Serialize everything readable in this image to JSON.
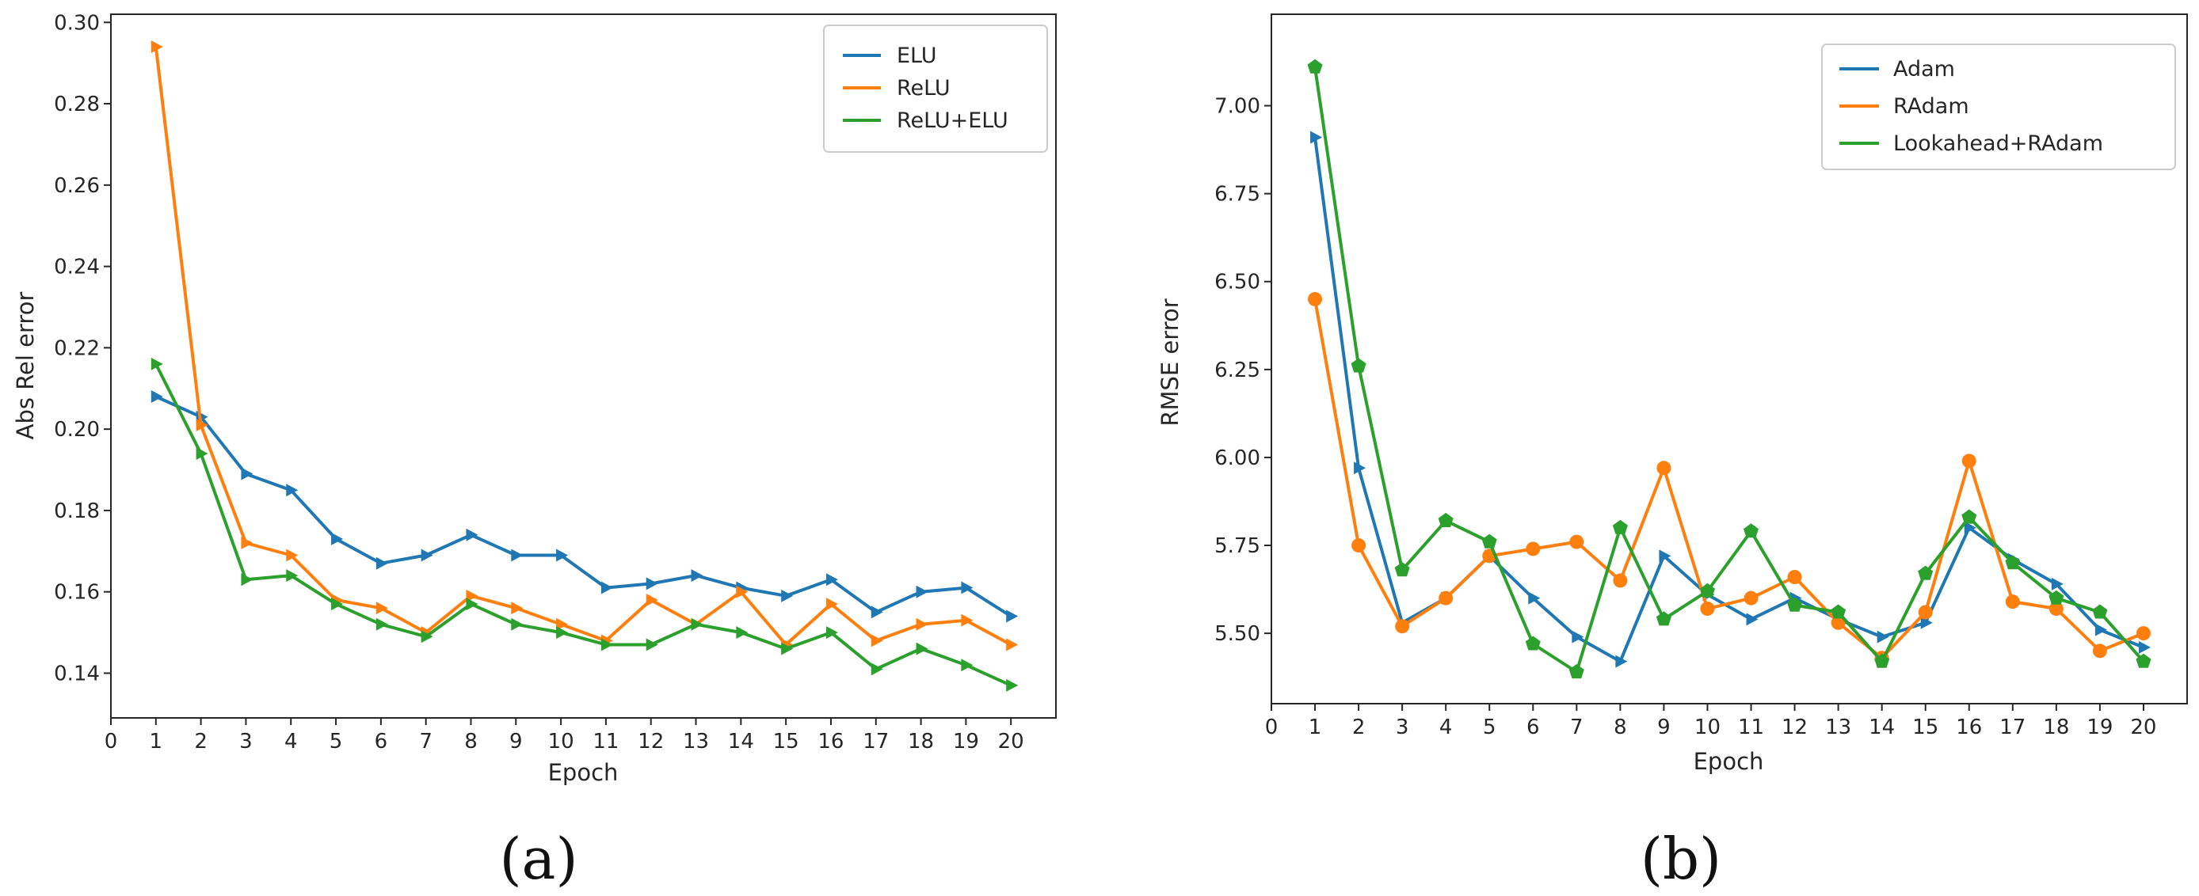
{
  "chart_data": [
    {
      "type": "line",
      "panel": "a",
      "caption": "(a)",
      "title": "",
      "xlabel": "Epoch",
      "ylabel": "Abs Rel error",
      "xlim": [
        0,
        21
      ],
      "ylim": [
        0.129,
        0.302
      ],
      "xticks": [
        "0",
        "1",
        "2",
        "3",
        "4",
        "5",
        "6",
        "7",
        "8",
        "9",
        "10",
        "11",
        "12",
        "13",
        "14",
        "15",
        "16",
        "17",
        "18",
        "19",
        "20"
      ],
      "yticks": [
        "0.14",
        "0.16",
        "0.18",
        "0.20",
        "0.22",
        "0.24",
        "0.26",
        "0.28",
        "0.30"
      ],
      "legend_position": "top-right",
      "marker": "triangle-right",
      "x": [
        1,
        2,
        3,
        4,
        5,
        6,
        7,
        8,
        9,
        10,
        11,
        12,
        13,
        14,
        15,
        16,
        17,
        18,
        19,
        20
      ],
      "series": [
        {
          "name": "ELU",
          "color": "#1f77b4",
          "values": [
            0.208,
            0.203,
            0.189,
            0.185,
            0.173,
            0.167,
            0.169,
            0.174,
            0.169,
            0.169,
            0.161,
            0.162,
            0.164,
            0.161,
            0.159,
            0.163,
            0.155,
            0.16,
            0.161,
            0.154
          ]
        },
        {
          "name": "ReLU",
          "color": "#ff7f0e",
          "values": [
            0.294,
            0.201,
            0.172,
            0.169,
            0.158,
            0.156,
            0.15,
            0.159,
            0.156,
            0.152,
            0.148,
            0.158,
            0.152,
            0.16,
            0.147,
            0.157,
            0.148,
            0.152,
            0.153,
            0.147
          ]
        },
        {
          "name": "ReLU+ELU",
          "color": "#2ca02c",
          "values": [
            0.216,
            0.194,
            0.163,
            0.164,
            0.157,
            0.152,
            0.149,
            0.157,
            0.152,
            0.15,
            0.147,
            0.147,
            0.152,
            0.15,
            0.146,
            0.15,
            0.141,
            0.146,
            0.142,
            0.137
          ]
        }
      ]
    },
    {
      "type": "line",
      "panel": "b",
      "caption": "(b)",
      "title": "",
      "xlabel": "Epoch",
      "ylabel": "RMSE error",
      "xlim": [
        0,
        21
      ],
      "ylim": [
        5.3,
        7.26
      ],
      "xticks": [
        "0",
        "1",
        "2",
        "3",
        "4",
        "5",
        "6",
        "7",
        "8",
        "9",
        "10",
        "11",
        "12",
        "13",
        "14",
        "15",
        "16",
        "17",
        "18",
        "19",
        "20"
      ],
      "yticks": [
        "5.50",
        "5.75",
        "6.00",
        "6.25",
        "6.50",
        "6.75",
        "7.00"
      ],
      "legend_position": "top-right",
      "x": [
        1,
        2,
        3,
        4,
        5,
        6,
        7,
        8,
        9,
        10,
        11,
        12,
        13,
        14,
        15,
        16,
        17,
        18,
        19,
        20
      ],
      "series": [
        {
          "name": "Adam",
          "color": "#1f77b4",
          "marker": "triangle-right",
          "values": [
            6.91,
            5.97,
            5.53,
            5.6,
            5.72,
            5.6,
            5.49,
            5.42,
            5.72,
            5.61,
            5.54,
            5.6,
            5.54,
            5.49,
            5.53,
            5.8,
            5.71,
            5.64,
            5.51,
            5.46
          ]
        },
        {
          "name": "RAdam",
          "color": "#ff7f0e",
          "marker": "circle",
          "values": [
            6.45,
            5.75,
            5.52,
            5.6,
            5.72,
            5.74,
            5.76,
            5.65,
            5.97,
            5.57,
            5.6,
            5.66,
            5.53,
            5.43,
            5.56,
            5.99,
            5.59,
            5.57,
            5.45,
            5.5
          ]
        },
        {
          "name": "Lookahead+RAdam",
          "color": "#2ca02c",
          "marker": "pentagon",
          "values": [
            7.11,
            6.26,
            5.68,
            5.82,
            5.76,
            5.47,
            5.39,
            5.8,
            5.54,
            5.62,
            5.79,
            5.58,
            5.56,
            5.42,
            5.67,
            5.83,
            5.7,
            5.6,
            5.56,
            5.42
          ]
        }
      ]
    }
  ]
}
